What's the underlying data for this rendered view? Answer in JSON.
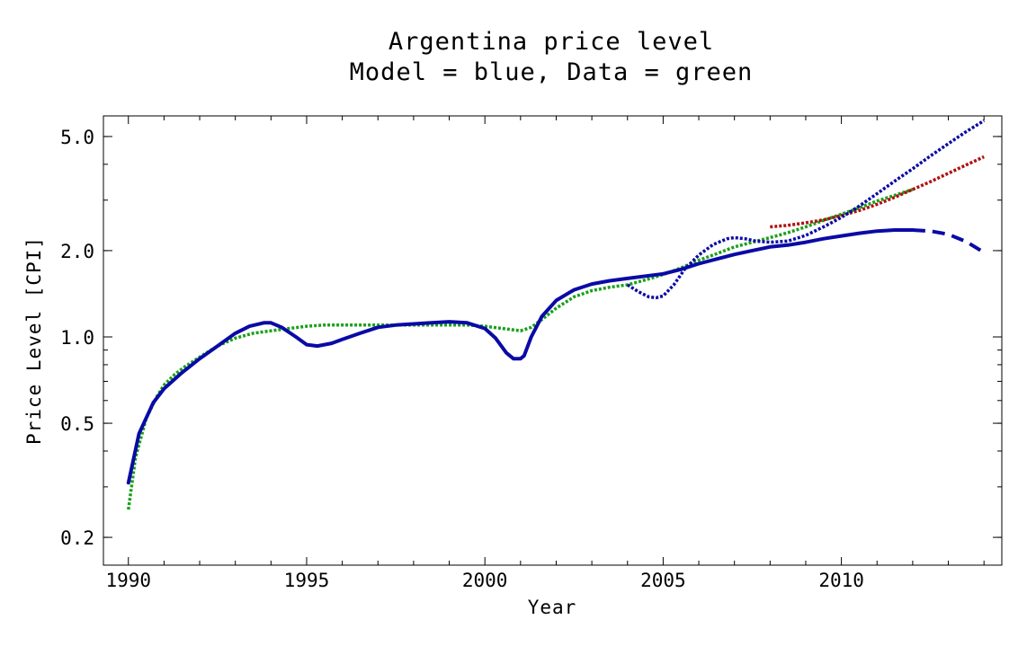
{
  "chart_data": {
    "type": "line",
    "title": "Argentina price level",
    "subtitle": "Model = blue, Data = green",
    "xlabel": "Year",
    "ylabel": "Price Level [CPI]",
    "xlim": [
      1989.3,
      2014.5
    ],
    "ylim": [
      0.16,
      5.9
    ],
    "y_scale": "log",
    "x_ticks": [
      1990,
      1995,
      2000,
      2005,
      2010
    ],
    "y_ticks": [
      0.2,
      0.5,
      1.0,
      2.0,
      5.0
    ],
    "y_tick_labels": [
      "0.2",
      "0.5",
      "1.0",
      "2.0",
      "5.0"
    ],
    "grid": false,
    "series": [
      {
        "color": "#0a0aa6",
        "style": "solid",
        "x": [
          1990,
          1990.3,
          1990.7,
          1991,
          1991.5,
          1992,
          1992.5,
          1993,
          1993.4,
          1993.8,
          1994,
          1994.3,
          1994.7,
          1995,
          1995.3,
          1995.7,
          1996,
          1996.5,
          1997,
          1997.5,
          1998,
          1998.5,
          1999,
          1999.5,
          2000,
          2000.3,
          2000.6,
          2000.8,
          2001,
          2001.1,
          2001.3,
          2001.6,
          2002,
          2002.5,
          2003,
          2003.5,
          2004,
          2004.5,
          2005,
          2005.5,
          2006,
          2006.5,
          2007,
          2007.5,
          2008,
          2008.5,
          2009,
          2009.5,
          2010,
          2010.5,
          2011,
          2011.5,
          2012
        ],
        "values": [
          0.31,
          0.46,
          0.59,
          0.66,
          0.75,
          0.84,
          0.93,
          1.03,
          1.09,
          1.12,
          1.12,
          1.08,
          1.0,
          0.94,
          0.93,
          0.95,
          0.98,
          1.03,
          1.08,
          1.1,
          1.11,
          1.12,
          1.13,
          1.12,
          1.07,
          0.99,
          0.88,
          0.84,
          0.84,
          0.86,
          1.0,
          1.18,
          1.34,
          1.46,
          1.53,
          1.57,
          1.6,
          1.63,
          1.66,
          1.72,
          1.8,
          1.87,
          1.94,
          2.0,
          2.06,
          2.09,
          2.14,
          2.2,
          2.25,
          2.3,
          2.34,
          2.36,
          2.36
        ]
      },
      {
        "color": "#0a0aa6",
        "style": "dashed",
        "x": [
          2012,
          2012.5,
          2013,
          2013.5,
          2014
        ],
        "values": [
          2.36,
          2.34,
          2.28,
          2.15,
          1.97
        ]
      },
      {
        "color": "#1aa01a",
        "style": "dotted",
        "x": [
          1990,
          1990.2,
          1990.5,
          1990.8,
          1991,
          1991.3,
          1991.6,
          1992,
          1992.5,
          1993,
          1993.5,
          1994,
          1994.5,
          1995,
          1995.5,
          1996,
          1996.5,
          1997,
          1997.5,
          1998,
          1998.5,
          1999,
          1999.5,
          2000,
          2000.5,
          2001,
          2001.3,
          2001.6,
          2002,
          2002.5,
          2003,
          2003.5,
          2004,
          2004.5,
          2005,
          2005.5,
          2006,
          2006.5,
          2007,
          2007.5,
          2008,
          2008.5,
          2009,
          2009.5,
          2010,
          2010.5,
          2011,
          2011.5,
          2012
        ],
        "values": [
          0.25,
          0.38,
          0.52,
          0.62,
          0.68,
          0.74,
          0.79,
          0.85,
          0.93,
          0.99,
          1.03,
          1.05,
          1.07,
          1.09,
          1.1,
          1.1,
          1.1,
          1.1,
          1.1,
          1.1,
          1.1,
          1.1,
          1.1,
          1.09,
          1.07,
          1.05,
          1.08,
          1.15,
          1.26,
          1.38,
          1.45,
          1.49,
          1.52,
          1.58,
          1.65,
          1.74,
          1.85,
          1.95,
          2.06,
          2.14,
          2.22,
          2.31,
          2.42,
          2.55,
          2.68,
          2.82,
          2.98,
          3.12,
          3.27
        ]
      },
      {
        "color": "#0a0aa6",
        "style": "dotted",
        "x": [
          2004,
          2004.3,
          2004.6,
          2004.8,
          2005,
          2005.3,
          2005.6,
          2006,
          2006.4,
          2006.8,
          2007,
          2007.3,
          2007.6,
          2008,
          2008.5,
          2009,
          2009.5,
          2010,
          2010.5,
          2011,
          2011.5,
          2012,
          2012.5,
          2013,
          2013.5,
          2014
        ],
        "values": [
          1.52,
          1.44,
          1.38,
          1.37,
          1.39,
          1.52,
          1.72,
          1.93,
          2.1,
          2.2,
          2.22,
          2.2,
          2.16,
          2.14,
          2.16,
          2.26,
          2.42,
          2.61,
          2.86,
          3.16,
          3.5,
          3.86,
          4.28,
          4.72,
          5.2,
          5.68
        ]
      },
      {
        "color": "#b01010",
        "style": "dotted",
        "x": [
          2008,
          2008.5,
          2009,
          2009.5,
          2010,
          2010.5,
          2011,
          2011.5,
          2012,
          2012.5,
          2013,
          2013.5,
          2014
        ],
        "values": [
          2.42,
          2.45,
          2.5,
          2.56,
          2.65,
          2.76,
          2.9,
          3.07,
          3.27,
          3.48,
          3.72,
          3.98,
          4.25
        ]
      }
    ]
  }
}
